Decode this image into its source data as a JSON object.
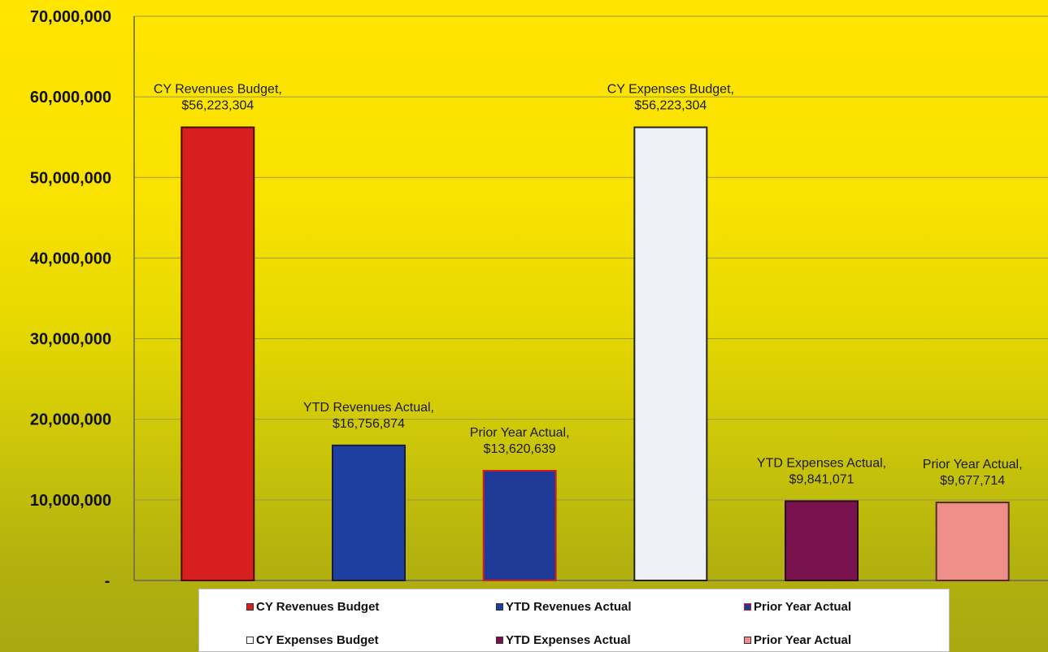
{
  "chart_data": {
    "type": "bar",
    "categories": [
      "CY Revenues Budget",
      "YTD Revenues Actual",
      "Prior Year Actual",
      "CY Expenses Budget",
      "YTD Expenses Actual",
      "Prior Year Actual"
    ],
    "values": [
      56223304,
      16756874,
      13620639,
      56223304,
      9841071,
      9677714
    ],
    "data_labels": [
      [
        "CY Revenues Budget,",
        "$56,223,304"
      ],
      [
        "YTD Revenues Actual,",
        "$16,756,874"
      ],
      [
        "Prior Year Actual,",
        "$13,620,639"
      ],
      [
        "CY Expenses Budget,",
        "$56,223,304"
      ],
      [
        "YTD Expenses Actual,",
        "$9,841,071"
      ],
      [
        "Prior Year Actual,",
        "$9,677,714"
      ]
    ],
    "colors": [
      "#d81e1e",
      "#1f3fa0",
      "#1f3a96",
      "#eef1f7",
      "#7a1250",
      "#ee8f8a"
    ],
    "edge_colors": [
      "#4a0a0a",
      "#1a1a40",
      "#d21e1e",
      "#222222",
      "#2a0a1e",
      "#5a2a2a"
    ],
    "ylim": [
      0,
      70000000
    ],
    "yticks": [
      0,
      10000000,
      20000000,
      30000000,
      40000000,
      50000000,
      60000000,
      70000000
    ],
    "ytick_labels": [
      "-",
      "10,000,000",
      "20,000,000",
      "30,000,000",
      "40,000,000",
      "50,000,000",
      "60,000,000",
      "70,000,000"
    ],
    "grid": true,
    "legend_position": "bottom",
    "title": "",
    "xlabel": "",
    "ylabel": ""
  },
  "legend": {
    "items": [
      {
        "label": "CY Revenues Budget",
        "color": "#d81e1e",
        "border": "#333333"
      },
      {
        "label": "YTD Revenues Actual",
        "color": "#1f3fa0",
        "border": "#333333"
      },
      {
        "label": "Prior Year Actual",
        "color": "#1f3a96",
        "border": "#d21e1e"
      },
      {
        "label": "CY Expenses Budget",
        "color": "#ffffff",
        "border": "#333333"
      },
      {
        "label": "YTD Expenses Actual",
        "color": "#7a1250",
        "border": "#333333"
      },
      {
        "label": "Prior Year Actual",
        "color": "#ee8f8a",
        "border": "#333333"
      }
    ]
  }
}
